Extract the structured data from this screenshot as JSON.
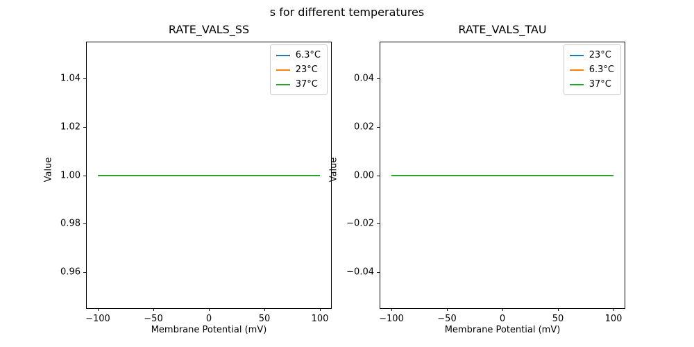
{
  "figure": {
    "suptitle": "s for different temperatures",
    "background_color": "#ffffff",
    "spine_color": "#000000"
  },
  "chart_data": [
    {
      "type": "line",
      "title": "RATE_VALS_SS",
      "xlabel": "Membrane Potential (mV)",
      "ylabel": "Value",
      "xlim": [
        -110,
        110
      ],
      "ylim": [
        0.945,
        1.055
      ],
      "xticks": [
        -100,
        -50,
        0,
        50,
        100
      ],
      "yticks": [
        1.04,
        1.02,
        1.0,
        0.98,
        0.96
      ],
      "xtick_labels": [
        "−100",
        "−50",
        "0",
        "50",
        "100"
      ],
      "ytick_labels": [
        "1.04",
        "1.02",
        "1.00",
        "0.98",
        "0.96"
      ],
      "grid": false,
      "legend_position": "upper right",
      "x": [
        -100,
        100
      ],
      "series": [
        {
          "name": "6.3°C",
          "color": "#1f77b4",
          "values": [
            1.0,
            1.0
          ]
        },
        {
          "name": "23°C",
          "color": "#ff7f0e",
          "values": [
            1.0,
            1.0
          ]
        },
        {
          "name": "37°C",
          "color": "#2ca02c",
          "values": [
            1.0,
            1.0
          ]
        }
      ]
    },
    {
      "type": "line",
      "title": "RATE_VALS_TAU",
      "xlabel": "Membrane Potential (mV)",
      "ylabel": "Value",
      "xlim": [
        -110,
        110
      ],
      "ylim": [
        -0.055,
        0.055
      ],
      "xticks": [
        -100,
        -50,
        0,
        50,
        100
      ],
      "yticks": [
        0.04,
        0.02,
        0.0,
        -0.02,
        -0.04
      ],
      "xtick_labels": [
        "−100",
        "−50",
        "0",
        "50",
        "100"
      ],
      "ytick_labels": [
        "0.04",
        "0.02",
        "0.00",
        "−0.02",
        "−0.04"
      ],
      "grid": false,
      "legend_position": "upper right",
      "x": [
        -100,
        100
      ],
      "series": [
        {
          "name": "23°C",
          "color": "#1f77b4",
          "values": [
            0.0,
            0.0
          ]
        },
        {
          "name": "6.3°C",
          "color": "#ff7f0e",
          "values": [
            0.0,
            0.0
          ]
        },
        {
          "name": "37°C",
          "color": "#2ca02c",
          "values": [
            0.0,
            0.0
          ]
        }
      ]
    }
  ]
}
